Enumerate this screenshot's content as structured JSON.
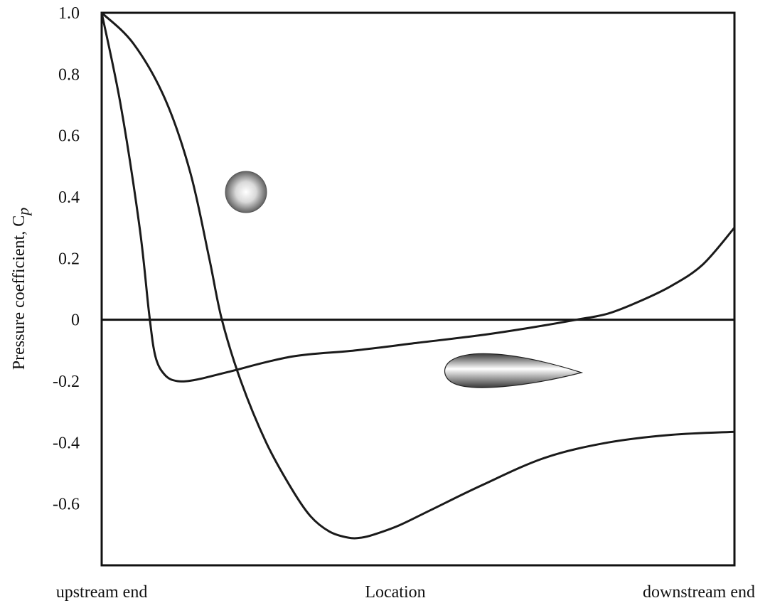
{
  "chart_data": {
    "type": "line",
    "title": "",
    "xlabel": "Location",
    "ylabel_main": "Pressure coefficient, C",
    "ylabel_sub": "p",
    "x_end_labels": {
      "left": "upstream end",
      "right": "downstream end"
    },
    "x_range": [
      0,
      1
    ],
    "ylim": [
      -0.8,
      1.0
    ],
    "yticks": [
      "1.0",
      "0.8",
      "0.6",
      "0.4",
      "0.2",
      "0",
      "-0.2",
      "-0.4",
      "-0.6"
    ],
    "ytick_values": [
      1.0,
      0.8,
      0.6,
      0.4,
      0.2,
      0,
      -0.2,
      -0.4,
      -0.6
    ],
    "zero_line": true,
    "grid": false,
    "series": [
      {
        "icon": "sphere-icon",
        "color": "#1a1a1a",
        "x": [
          0,
          0.05,
          0.1,
          0.14,
          0.17,
          0.19,
          0.22,
          0.26,
          0.3,
          0.33,
          0.36,
          0.39,
          0.41,
          0.43,
          0.47,
          0.52,
          0.6,
          0.7,
          0.8,
          0.9,
          1.0
        ],
        "y": [
          1.0,
          0.9,
          0.72,
          0.48,
          0.2,
          0.0,
          -0.2,
          -0.4,
          -0.55,
          -0.64,
          -0.69,
          -0.71,
          -0.71,
          -0.7,
          -0.67,
          -0.62,
          -0.54,
          -0.45,
          -0.4,
          -0.375,
          -0.365
        ]
      },
      {
        "icon": "airfoil-icon",
        "color": "#1a1a1a",
        "x": [
          0,
          0.03,
          0.06,
          0.075,
          0.085,
          0.1,
          0.12,
          0.15,
          0.2,
          0.3,
          0.4,
          0.5,
          0.6,
          0.68,
          0.75,
          0.8,
          0.85,
          0.9,
          0.95,
          1.0
        ],
        "y": [
          1.0,
          0.7,
          0.3,
          0.02,
          -0.12,
          -0.18,
          -0.2,
          -0.195,
          -0.17,
          -0.12,
          -0.1,
          -0.075,
          -0.05,
          -0.025,
          0.0,
          0.02,
          0.06,
          0.11,
          0.18,
          0.3
        ]
      }
    ]
  }
}
